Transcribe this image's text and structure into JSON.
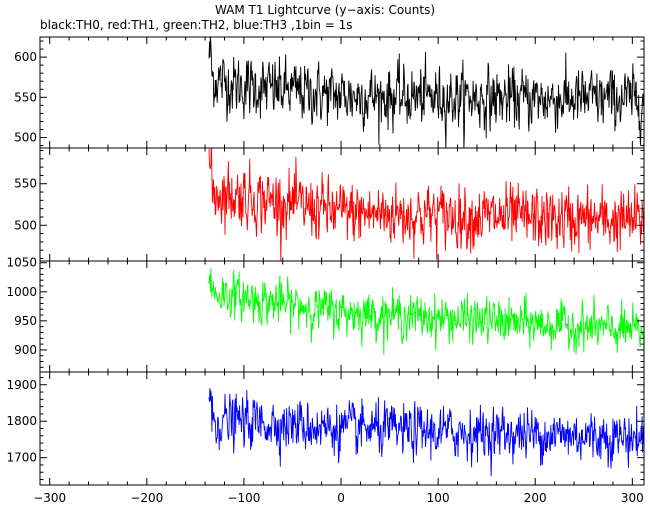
{
  "chart_data": {
    "type": "line",
    "title": "WAM T1 Lightcurve (y−axis: Counts)",
    "subtitle": "black:TH0, red:TH1, green:TH2, blue:TH3 ,1bin = 1s",
    "x_ticks": [
      "−300",
      "−200",
      "−100",
      "0",
      "100",
      "200",
      "300"
    ],
    "x_tick_values": [
      -300,
      -200,
      -100,
      0,
      100,
      200,
      300
    ],
    "xlim": [
      -310,
      312
    ],
    "data_start_x": -136,
    "data_end_x": 312,
    "grid": false,
    "panels": [
      {
        "series": "TH0",
        "color": "#000000",
        "ylim": [
          487,
          625
        ],
        "y_ticks": [
          "600",
          "550",
          "500"
        ],
        "y_tick_values": [
          600,
          550,
          500
        ],
        "trend": [
          [
            -136,
            575
          ],
          [
            -110,
            565
          ],
          [
            0,
            552
          ],
          [
            100,
            550
          ],
          [
            200,
            548
          ],
          [
            312,
            548
          ]
        ],
        "noise_sd": 24
      },
      {
        "series": "TH1",
        "color": "#ff0000",
        "ylim": [
          457,
          593
        ],
        "y_ticks": [
          "550",
          "500"
        ],
        "y_tick_values": [
          550,
          500
        ],
        "trend": [
          [
            -136,
            540
          ],
          [
            -100,
            535
          ],
          [
            0,
            515
          ],
          [
            100,
            512
          ],
          [
            200,
            508
          ],
          [
            312,
            505
          ]
        ],
        "noise_sd": 24
      },
      {
        "series": "TH2",
        "color": "#00ff00",
        "ylim": [
          862,
          1053
        ],
        "y_ticks": [
          "1050",
          "1000",
          "950",
          "900"
        ],
        "y_tick_values": [
          1050,
          1000,
          950,
          900
        ],
        "trend": [
          [
            -136,
            1000
          ],
          [
            -100,
            990
          ],
          [
            0,
            965
          ],
          [
            100,
            955
          ],
          [
            200,
            945
          ],
          [
            312,
            932
          ]
        ],
        "noise_sd": 24
      },
      {
        "series": "TH3",
        "color": "#0000ff",
        "ylim": [
          1625,
          1935
        ],
        "y_ticks": [
          "1900",
          "1800",
          "1700"
        ],
        "y_tick_values": [
          1900,
          1800,
          1700
        ],
        "trend": [
          [
            -136,
            1800
          ],
          [
            -100,
            1800
          ],
          [
            0,
            1780
          ],
          [
            100,
            1770
          ],
          [
            200,
            1765
          ],
          [
            312,
            1755
          ]
        ],
        "noise_sd": 45
      }
    ]
  }
}
